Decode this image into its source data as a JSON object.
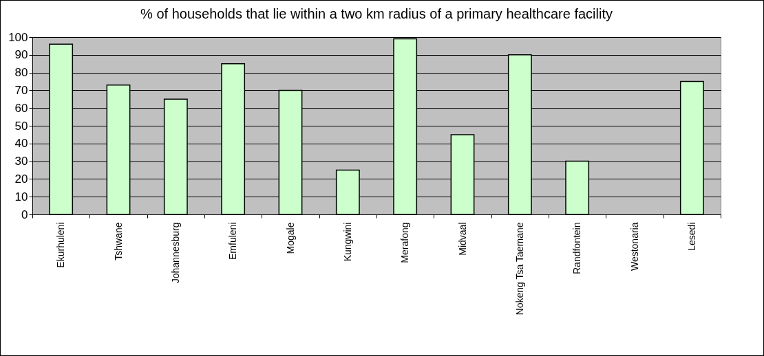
{
  "chart_data": {
    "type": "bar",
    "title": "% of households that lie within a two km radius of a primary healthcare facility",
    "categories": [
      "Ekurhuleni",
      "Tshwane",
      "Johannesburg",
      "Emfuleni",
      "Mogale",
      "Kungwini",
      "Merafong",
      "Midvaal",
      "Nokeng Tsa Taemane",
      "Randfontein",
      "Westonaria",
      "Lesedi"
    ],
    "values": [
      96,
      73,
      65,
      85,
      70,
      25,
      99,
      45,
      90,
      30,
      null,
      75
    ],
    "color": "#ccffcc",
    "ylim": [
      0,
      100
    ],
    "yticks": [
      0,
      10,
      20,
      30,
      40,
      50,
      60,
      70,
      80,
      90,
      100
    ],
    "grid": "y"
  }
}
